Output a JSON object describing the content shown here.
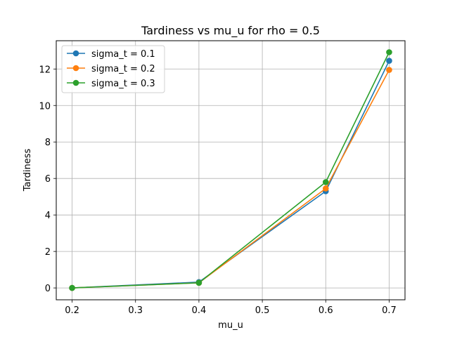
{
  "chart_data": {
    "type": "line",
    "title": "Tardiness vs mu_u for rho = 0.5",
    "xlabel": "mu_u",
    "ylabel": "Tardiness",
    "x": [
      0.2,
      0.4,
      0.6,
      0.7
    ],
    "xticks": [
      "0.2",
      "0.3",
      "0.4",
      "0.5",
      "0.6",
      "0.7"
    ],
    "yticks": [
      "0",
      "2",
      "4",
      "6",
      "8",
      "10",
      "12"
    ],
    "xlim": [
      0.175,
      0.725
    ],
    "ylim": [
      -0.65,
      13.55
    ],
    "grid": true,
    "legend_position": "top-left",
    "series": [
      {
        "name": "sigma_t = 0.1",
        "color": "#1f77b4",
        "values": [
          0.0,
          0.32,
          5.3,
          12.45
        ]
      },
      {
        "name": "sigma_t = 0.2",
        "color": "#ff7f0e",
        "values": [
          0.0,
          0.28,
          5.45,
          11.95
        ]
      },
      {
        "name": "sigma_t = 0.3",
        "color": "#2ca02c",
        "values": [
          0.0,
          0.28,
          5.8,
          12.92
        ]
      }
    ]
  }
}
